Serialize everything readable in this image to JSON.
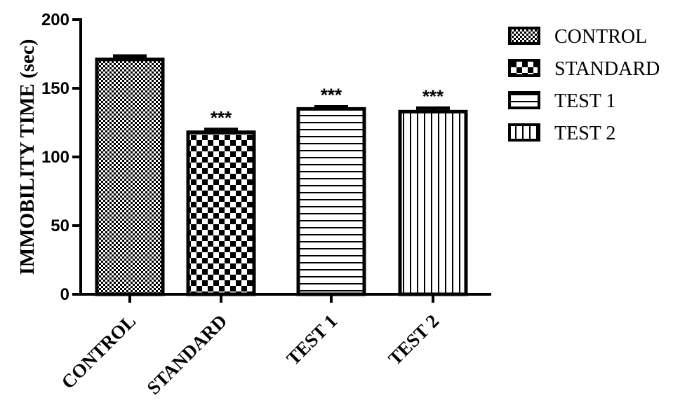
{
  "chart_data": {
    "type": "bar",
    "ylabel": "IMMOBILITY TIME (sec)",
    "ylim": [
      0,
      200
    ],
    "yticks": [
      0,
      50,
      100,
      150,
      200
    ],
    "categories": [
      "CONTROL",
      "STANDARD",
      "TEST 1",
      "TEST 2"
    ],
    "values": [
      171,
      118,
      135,
      133
    ],
    "errors": [
      2.5,
      2,
      1.5,
      2.5
    ],
    "annotations": [
      "",
      "***",
      "***",
      "***"
    ],
    "patterns": [
      "dense-checker",
      "checker",
      "horizontal-lines",
      "vertical-lines"
    ],
    "legend": {
      "position": "top-right",
      "entries": [
        "CONTROL",
        "STANDARD",
        "TEST 1",
        "TEST 2"
      ]
    },
    "grid": false
  }
}
